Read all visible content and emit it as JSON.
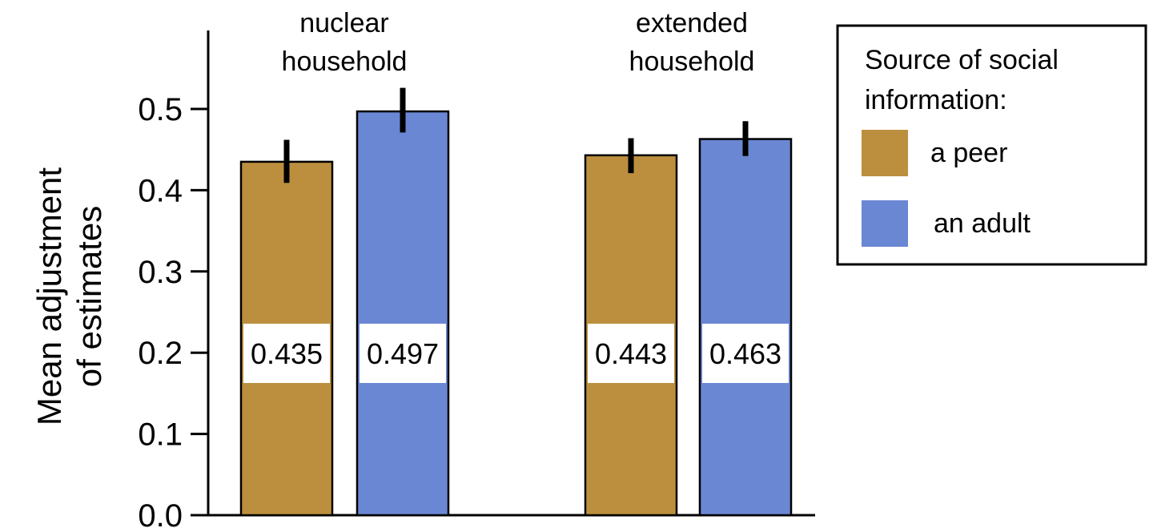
{
  "chart_data": {
    "type": "bar",
    "categories": [
      "nuclear\nhousehold",
      "extended\nhousehold"
    ],
    "series": [
      {
        "name": "a peer",
        "color": "#BC8F3E",
        "values": [
          0.435,
          0.443
        ],
        "error": [
          [
            0.409,
            0.462
          ],
          [
            0.421,
            0.464
          ]
        ]
      },
      {
        "name": "an adult",
        "color": "#6A87D3",
        "values": [
          0.497,
          0.463
        ],
        "error": [
          [
            0.471,
            0.526
          ],
          [
            0.442,
            0.485
          ]
        ]
      }
    ],
    "data_labels": [
      [
        "0.435",
        "0.443"
      ],
      [
        "0.497",
        "0.463"
      ]
    ],
    "ylabel": [
      "Mean adjustment",
      "of estimates"
    ],
    "ylim": [
      0,
      0.58
    ],
    "yticks": [
      0.0,
      0.1,
      0.2,
      0.3,
      0.4,
      0.5
    ],
    "ytick_labels": [
      "0.0",
      "0.1",
      "0.2",
      "0.3",
      "0.4",
      "0.5"
    ],
    "legend": {
      "title": [
        "Source of social",
        "information:"
      ],
      "placement": "right"
    },
    "grid": false
  }
}
